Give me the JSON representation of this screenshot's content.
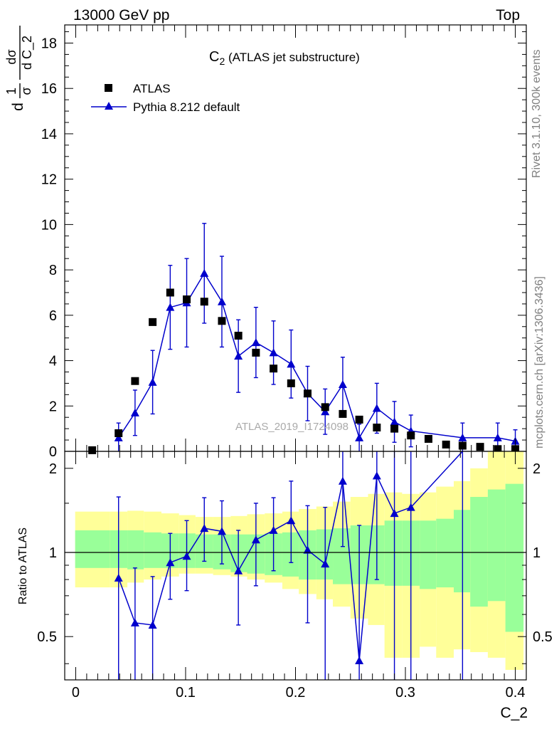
{
  "header": {
    "left": "13000 GeV pp",
    "right": "Top"
  },
  "side_labels": {
    "rivet": "Rivet 3.1.10,  300k events",
    "mcplots": "mcplots.cern.ch [arXiv:1306.3436]"
  },
  "colors": {
    "data": "#000000",
    "mc": "#0000cc",
    "band_inner": "#99ff99",
    "band_outer": "#ffff99",
    "ref_line": "#000000"
  },
  "chart_data": [
    {
      "type": "scatter",
      "panel": "main",
      "title": "C₂ (ATLAS jet substructure)",
      "title_main": "C",
      "title_sub": "2",
      "title_rest": " (ATLAS jet substructure)",
      "watermark": "ATLAS_2019_I1724098",
      "ylabel_fraction1_num": "1",
      "ylabel_fraction1_den": "σ",
      "ylabel_fraction1_prefix": "d",
      "ylabel_fraction2_num": "dσ",
      "ylabel_fraction2_den": "d C_2",
      "xlim": [
        -0.01,
        0.41
      ],
      "ylim": [
        0,
        18.8
      ],
      "yticks": [
        0,
        2,
        4,
        6,
        8,
        10,
        12,
        14,
        16,
        18
      ],
      "ytick_labels": [
        "0",
        "2",
        "4",
        "6",
        "8",
        "10",
        "12",
        "14",
        "16",
        "18"
      ],
      "legend": {
        "placement": "top-left",
        "entries": [
          "ATLAS",
          "Pythia 8.212 default"
        ]
      },
      "series": [
        {
          "name": "ATLAS",
          "marker": "square",
          "x": [
            0.015,
            0.039,
            0.054,
            0.07,
            0.086,
            0.101,
            0.117,
            0.133,
            0.148,
            0.164,
            0.18,
            0.196,
            0.211,
            0.227,
            0.243,
            0.258,
            0.274,
            0.29,
            0.305,
            0.321,
            0.337,
            0.352,
            0.368,
            0.384,
            0.4
          ],
          "y": [
            0.05,
            0.8,
            3.1,
            5.7,
            7.0,
            6.7,
            6.6,
            5.75,
            5.1,
            4.35,
            3.65,
            3.0,
            2.55,
            1.95,
            1.65,
            1.4,
            1.05,
            1.0,
            0.7,
            0.55,
            0.3,
            0.25,
            0.2,
            0.1,
            0.1
          ]
        },
        {
          "name": "Pythia 8.212 default",
          "marker": "triangle",
          "x": [
            0.039,
            0.054,
            0.07,
            0.086,
            0.101,
            0.117,
            0.133,
            0.148,
            0.164,
            0.18,
            0.196,
            0.211,
            0.227,
            0.243,
            0.258,
            0.274,
            0.29,
            0.305,
            0.352,
            0.384,
            0.4
          ],
          "y": [
            0.6,
            1.7,
            3.05,
            6.35,
            6.55,
            7.85,
            6.6,
            4.2,
            4.8,
            4.35,
            3.85,
            2.55,
            1.75,
            2.95,
            0.6,
            1.9,
            1.3,
            0.9,
            0.6,
            0.6,
            0.45
          ],
          "yerr": [
            0.65,
            1.0,
            1.4,
            1.85,
            1.95,
            2.2,
            2.0,
            1.6,
            1.55,
            1.4,
            1.5,
            1.2,
            1.0,
            1.2,
            0.6,
            1.1,
            0.9,
            0.7,
            0.65,
            0.65,
            0.5
          ]
        }
      ]
    },
    {
      "type": "line",
      "panel": "ratio",
      "xlabel": "C_2",
      "ylabel": "Ratio to ATLAS",
      "xlim": [
        -0.01,
        0.41
      ],
      "ylim": [
        0.35,
        2.3
      ],
      "yscale": "log",
      "xticks": [
        0,
        0.1,
        0.2,
        0.3,
        0.4
      ],
      "xtick_labels": [
        "0",
        "0.1",
        "0.2",
        "0.3",
        "0.4"
      ],
      "yticks": [
        0.5,
        1,
        2
      ],
      "ytick_labels": [
        "0.5",
        "1",
        "2"
      ],
      "bands": {
        "edges": [
          -0.0005,
          0.031,
          0.047,
          0.062,
          0.078,
          0.094,
          0.109,
          0.125,
          0.141,
          0.156,
          0.172,
          0.188,
          0.203,
          0.219,
          0.234,
          0.25,
          0.266,
          0.281,
          0.297,
          0.313,
          0.328,
          0.344,
          0.359,
          0.375,
          0.391,
          0.4075
        ],
        "outer_lo": [
          0.75,
          0.75,
          0.78,
          0.8,
          0.82,
          0.84,
          0.84,
          0.83,
          0.82,
          0.8,
          0.78,
          0.74,
          0.71,
          0.68,
          0.64,
          0.58,
          0.55,
          0.42,
          0.42,
          0.46,
          0.42,
          0.45,
          0.44,
          0.42,
          0.38
        ],
        "outer_hi": [
          1.4,
          1.4,
          1.41,
          1.4,
          1.38,
          1.36,
          1.34,
          1.34,
          1.35,
          1.37,
          1.38,
          1.4,
          1.43,
          1.46,
          1.52,
          1.58,
          1.62,
          1.64,
          1.62,
          1.64,
          1.72,
          1.8,
          2.0,
          2.3,
          2.3
        ],
        "inner_lo": [
          0.88,
          0.88,
          0.87,
          0.88,
          0.88,
          0.88,
          0.88,
          0.87,
          0.85,
          0.84,
          0.83,
          0.82,
          0.8,
          0.8,
          0.77,
          0.77,
          0.77,
          0.76,
          0.76,
          0.74,
          0.75,
          0.72,
          0.64,
          0.67,
          0.52
        ],
        "inner_hi": [
          1.2,
          1.2,
          1.2,
          1.18,
          1.17,
          1.17,
          1.16,
          1.16,
          1.16,
          1.16,
          1.17,
          1.18,
          1.2,
          1.21,
          1.22,
          1.25,
          1.25,
          1.3,
          1.3,
          1.3,
          1.32,
          1.42,
          1.58,
          1.68,
          1.76
        ]
      },
      "series": [
        {
          "name": "Pythia 8.212 default",
          "x": [
            0.039,
            0.054,
            0.07,
            0.086,
            0.101,
            0.117,
            0.133,
            0.148,
            0.164,
            0.18,
            0.196,
            0.211,
            0.227,
            0.243,
            0.258,
            0.274,
            0.29,
            0.305,
            0.352
          ],
          "y": [
            0.81,
            0.56,
            0.55,
            0.92,
            0.97,
            1.22,
            1.19,
            0.86,
            1.11,
            1.2,
            1.3,
            1.02,
            0.91,
            1.8,
            0.41,
            1.88,
            1.38,
            1.45,
            2.35
          ],
          "ylo": [
            0.35,
            0.35,
            0.35,
            0.68,
            0.73,
            0.93,
            0.91,
            0.55,
            0.76,
            0.86,
            0.92,
            0.56,
            0.35,
            1.05,
            0.35,
            0.8,
            0.35,
            0.35,
            0.35
          ],
          "yhi": [
            1.58,
            0.88,
            0.82,
            1.17,
            1.3,
            1.57,
            1.53,
            1.2,
            1.5,
            1.57,
            1.8,
            1.47,
            1.45,
            2.3,
            1.25,
            2.3,
            2.3,
            2.3,
            2.3
          ]
        }
      ]
    }
  ]
}
